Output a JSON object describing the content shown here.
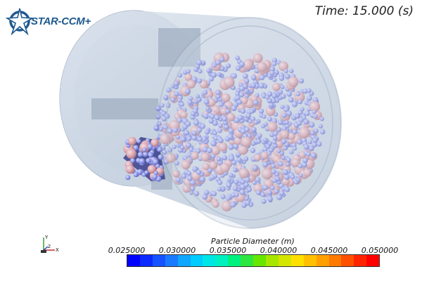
{
  "app": {
    "logo_text": "STAR-CCM+",
    "logo_icon": "star-ccm-logo-icon"
  },
  "time_readout": "Time: 15.000 (s)",
  "legend": {
    "title": "Particle Diameter (m)",
    "ticks": [
      "0.025000",
      "0.030000",
      "0.035000",
      "0.040000",
      "0.045000",
      "0.050000"
    ],
    "range": [
      0.025,
      0.05
    ],
    "colormap": [
      "#0000ff",
      "#0a2aff",
      "#1652ff",
      "#1a7aff",
      "#10a6ff",
      "#00ccff",
      "#00e6e6",
      "#00f0c0",
      "#00f080",
      "#2ee640",
      "#66e600",
      "#a6e600",
      "#d4e600",
      "#ffe000",
      "#ffc000",
      "#ffa000",
      "#ff7a00",
      "#ff5000",
      "#ff2400",
      "#ff0000"
    ]
  },
  "axes_triad": {
    "x_label": "X",
    "y_label": "Y",
    "z_label": "Z"
  },
  "scene": {
    "drum_color": "#c7d3e2",
    "small_particle_color": "#8f97e8",
    "large_particle_color": "#d9a3ad"
  }
}
